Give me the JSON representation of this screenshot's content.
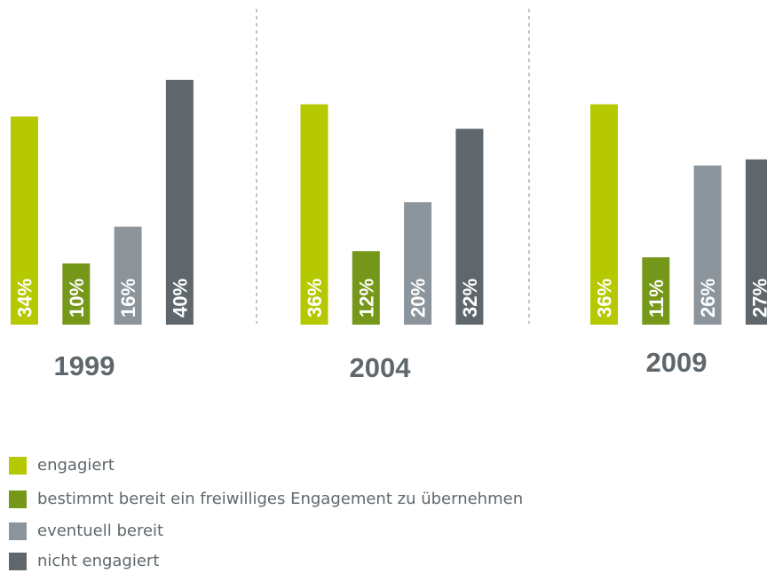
{
  "chart_data": {
    "type": "bar",
    "categories": [
      "1999",
      "2004",
      "2009"
    ],
    "series": [
      {
        "name": "engagiert",
        "color": "#b6c800",
        "values": [
          34,
          36,
          36
        ],
        "value_labels": [
          "34%",
          "36%",
          "36%"
        ]
      },
      {
        "name": "bestimmt bereit ein freiwilliges Engagement zu übernehmen",
        "color": "#76981a",
        "values": [
          10,
          12,
          11
        ],
        "value_labels": [
          "10%",
          "12%",
          "11%"
        ]
      },
      {
        "name": "eventuell bereit",
        "color": "#8c959c",
        "values": [
          16,
          20,
          26
        ],
        "value_labels": [
          "16%",
          "20%",
          "26%"
        ]
      },
      {
        "name": "nicht engagiert",
        "color": "#5f676c",
        "values": [
          40,
          32,
          27
        ],
        "value_labels": [
          "40%",
          "32%",
          "27%"
        ]
      }
    ]
  }
}
